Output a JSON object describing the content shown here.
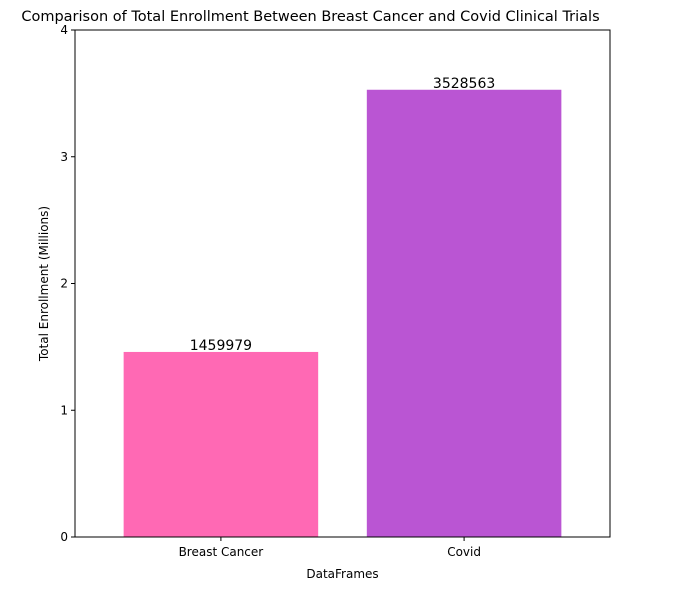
{
  "chart_data": {
    "type": "bar",
    "title": "Comparison of Total Enrollment Between Breast Cancer and Covid Clinical Trials",
    "xlabel": "DataFrames",
    "ylabel": "Total Enrollment (Millions)",
    "categories": [
      "Breast Cancer",
      "Covid"
    ],
    "values": [
      1.459979,
      3.528563
    ],
    "data_labels": [
      "1459979",
      "3528563"
    ],
    "colors": [
      "#ff69b4",
      "#ba55d3"
    ],
    "ylim": [
      0,
      4
    ],
    "yticks": [
      0,
      1,
      2,
      3,
      4
    ],
    "ytick_labels": [
      "0",
      "1",
      "2",
      "3",
      "4"
    ],
    "grid": false,
    "legend": "none"
  }
}
